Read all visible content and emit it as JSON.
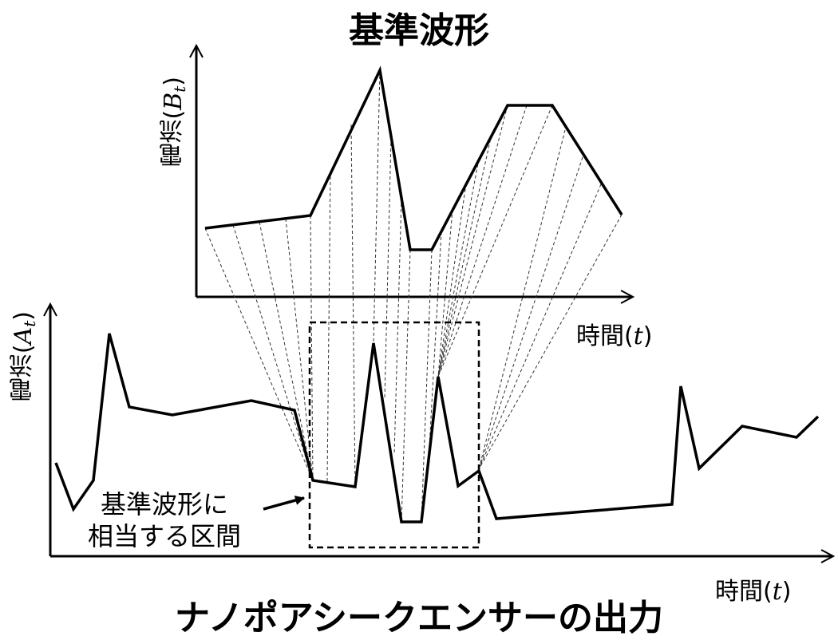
{
  "top_chart": {
    "title": "基準波形",
    "ylabel": "電流",
    "ylabel_symbol": "B",
    "ylabel_sub": "t",
    "xlabel": "時間",
    "xlabel_symbol": "t"
  },
  "bottom_chart": {
    "title": "ナノポアシークエンサーの出力",
    "ylabel": "電流",
    "ylabel_symbol": "A",
    "ylabel_sub": "t",
    "xlabel": "時間",
    "xlabel_symbol": "t"
  },
  "annotation": {
    "line1": "基準波形に",
    "line2": "相当する区間"
  },
  "paren_open": "(",
  "paren_close": ")"
}
